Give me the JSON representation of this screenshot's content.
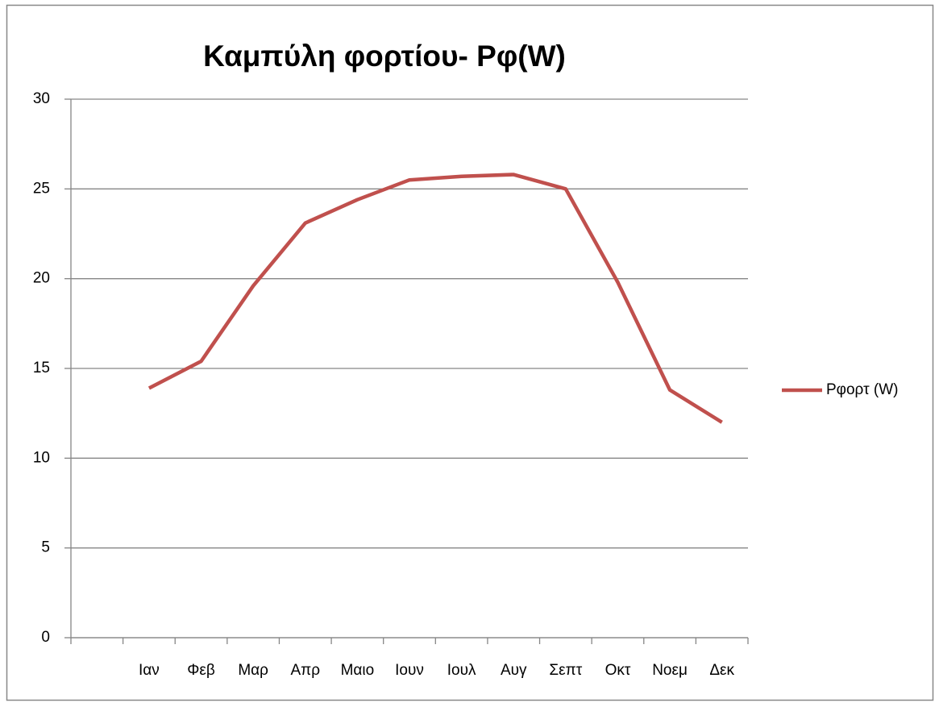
{
  "chart_data": {
    "type": "line",
    "title": "Καμπύλη φορτίου- Pφ(W)",
    "categories": [
      null,
      "Ιαν",
      "Φεβ",
      "Μαρ",
      "Απρ",
      "Μαιο",
      "Ιουν",
      "Ιουλ",
      "Αυγ",
      "Σεπτ",
      "Οκτ",
      "Νοεμ",
      "Δεκ"
    ],
    "series": [
      {
        "name": "Pφορτ (W)",
        "color": "#c0504d",
        "values": [
          null,
          13.9,
          15.4,
          19.6,
          23.1,
          24.4,
          25.5,
          25.7,
          25.8,
          25.0,
          19.8,
          13.8,
          12.0
        ]
      }
    ],
    "ylim": [
      0,
      30
    ],
    "yticks": [
      0,
      5,
      10,
      15,
      20,
      25,
      30
    ],
    "grid": true,
    "legend": "right"
  }
}
